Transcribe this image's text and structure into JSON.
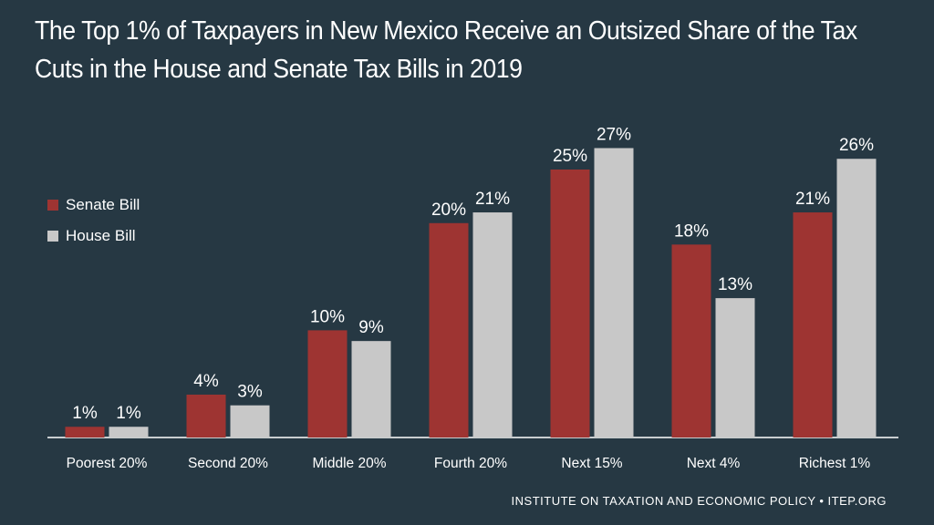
{
  "title": {
    "line1": "The Top 1% of Taxpayers in New Mexico Receive an Outsized Share of the Tax",
    "line2": "Cuts in the House and Senate Tax Bills in 2019"
  },
  "footer": {
    "source": "INSTITUTE ON TAXATION AND ECONOMIC POLICY • ITEP.ORG"
  },
  "legend": {
    "senate": "Senate Bill",
    "house": "House Bill"
  },
  "colors": {
    "background": "#263843",
    "senate": "#9E3432",
    "house": "#C8C8C8",
    "text": "#FFFFFF"
  },
  "chart_data": {
    "type": "bar",
    "title": "The Top 1% of Taxpayers in New Mexico Receive an Outsized Share of the Tax Cuts in the House and Senate Tax Bills in 2019",
    "xlabel": "",
    "ylabel": "",
    "ylim": [
      0,
      30
    ],
    "grid": false,
    "legend_position": "left",
    "categories": [
      "Poorest 20%",
      "Second 20%",
      "Middle 20%",
      "Fourth 20%",
      "Next 15%",
      "Next 4%",
      "Richest 1%"
    ],
    "series": [
      {
        "name": "Senate Bill",
        "values": [
          1,
          4,
          10,
          20,
          25,
          18,
          21
        ],
        "labels": [
          "1%",
          "4%",
          "10%",
          "20%",
          "25%",
          "18%",
          "21%"
        ]
      },
      {
        "name": "House Bill",
        "values": [
          1,
          3,
          9,
          21,
          27,
          13,
          26
        ],
        "labels": [
          "1%",
          "3%",
          "9%",
          "21%",
          "27%",
          "13%",
          "26%"
        ]
      }
    ]
  }
}
